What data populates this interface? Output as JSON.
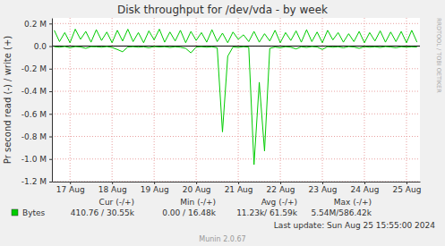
{
  "chart_data": {
    "type": "line",
    "title": "Disk throughput for /dev/vda - by week",
    "ylabel": "Pr second read (-) / write (+)",
    "x": [
      16.625,
      16.75,
      16.875,
      17,
      17.125,
      17.25,
      17.375,
      17.5,
      17.625,
      17.75,
      17.875,
      18,
      18.125,
      18.25,
      18.375,
      18.5,
      18.625,
      18.75,
      18.875,
      19,
      19.125,
      19.25,
      19.375,
      19.5,
      19.625,
      19.75,
      19.875,
      20,
      20.125,
      20.25,
      20.375,
      20.5,
      20.625,
      20.75,
      20.875,
      21,
      21.125,
      21.25,
      21.375,
      21.5,
      21.625,
      21.75,
      21.875,
      22,
      22.125,
      22.25,
      22.375,
      22.5,
      22.625,
      22.75,
      22.875,
      23,
      23.125,
      23.25,
      23.375,
      23.5,
      23.625,
      23.75,
      23.875,
      24,
      24.125,
      24.25,
      24.375,
      24.5,
      24.625,
      24.75,
      24.875,
      25,
      25.125,
      25.25
    ],
    "series": [
      {
        "name": "Bytes",
        "color": "#00cc00",
        "values": [
          140000,
          40000,
          120000,
          30000,
          150000,
          60000,
          130000,
          35000,
          145000,
          50000,
          125000,
          30000,
          140000,
          45000,
          150000,
          40000,
          120000,
          30000,
          135000,
          55000,
          150000,
          35000,
          125000,
          45000,
          140000,
          30000,
          130000,
          50000,
          120000,
          35000,
          145000,
          40000,
          115000,
          30000,
          125000,
          60000,
          100000,
          40000,
          130000,
          35000,
          110000,
          45000,
          140000,
          30000,
          120000,
          50000,
          135000,
          35000,
          145000,
          40000,
          125000,
          30000,
          140000,
          55000,
          120000,
          35000,
          110000,
          40000,
          130000,
          30000,
          120000,
          45000,
          135000,
          35000,
          125000,
          40000,
          130000,
          30000,
          140000,
          35000
        ]
      },
      {
        "color": "#00cc00",
        "values": [
          -5000,
          -10000,
          -3000,
          -15000,
          -4000,
          -8000,
          -20000,
          -5000,
          -6000,
          -10000,
          -4000,
          -12000,
          -30000,
          -50000,
          -8000,
          -5000,
          -10000,
          -6000,
          -15000,
          -4000,
          -8000,
          -5000,
          -12000,
          -6000,
          -10000,
          -20000,
          -60000,
          -8000,
          -5000,
          -10000,
          -6000,
          -15000,
          -760000,
          -90000,
          -8000,
          -12000,
          -5000,
          -10000,
          -1050000,
          -320000,
          -930000,
          -20000,
          -8000,
          -15000,
          -5000,
          -10000,
          -25000,
          -6000,
          -12000,
          -4000,
          -8000,
          -30000,
          -5000,
          -10000,
          -6000,
          -15000,
          -4000,
          -8000,
          -20000,
          -5000,
          -10000,
          -6000,
          -12000,
          -4000,
          -8000,
          -15000,
          -5000,
          -10000,
          -6000,
          -9000
        ]
      }
    ],
    "xlim": [
      16.57,
      25.32
    ],
    "xticks": [
      {
        "value": 17,
        "label": "17 Aug"
      },
      {
        "value": 18,
        "label": "18 Aug"
      },
      {
        "value": 19,
        "label": "19 Aug"
      },
      {
        "value": 20,
        "label": "20 Aug"
      },
      {
        "value": 21,
        "label": "21 Aug"
      },
      {
        "value": 22,
        "label": "22 Aug"
      },
      {
        "value": 23,
        "label": "23 Aug"
      },
      {
        "value": 24,
        "label": "24 Aug"
      },
      {
        "value": 25,
        "label": "25 Aug"
      }
    ],
    "ylim": [
      -1200000,
      250000
    ],
    "yticks": [
      {
        "value": -1200000,
        "label": "-1.2 M"
      },
      {
        "value": -1000000,
        "label": "-1.0 M"
      },
      {
        "value": -800000,
        "label": "-0.8 M"
      },
      {
        "value": -600000,
        "label": "-0.6 M"
      },
      {
        "value": -400000,
        "label": "-0.4 M"
      },
      {
        "value": -200000,
        "label": "-0.2 M"
      },
      {
        "value": 0,
        "label": "0.0"
      },
      {
        "value": 200000,
        "label": "0.2 M"
      }
    ],
    "grid": true,
    "legend": "bottom-left",
    "legend_table": {
      "columns": [
        "Cur (-/+)",
        "Min (-/+)",
        "Avg (-/+)",
        "Max (-/+)"
      ],
      "cells": [
        "410.76 / 30.55k",
        "0.00 / 16.48k",
        "11.23k/ 61.59k",
        "5.54M/586.42k"
      ]
    },
    "annotations": [
      "RRDTOOL / TOBI OETIKER",
      "Last update: Sun Aug 25 15:55:00 2024",
      "Munin 2.0.67"
    ]
  }
}
